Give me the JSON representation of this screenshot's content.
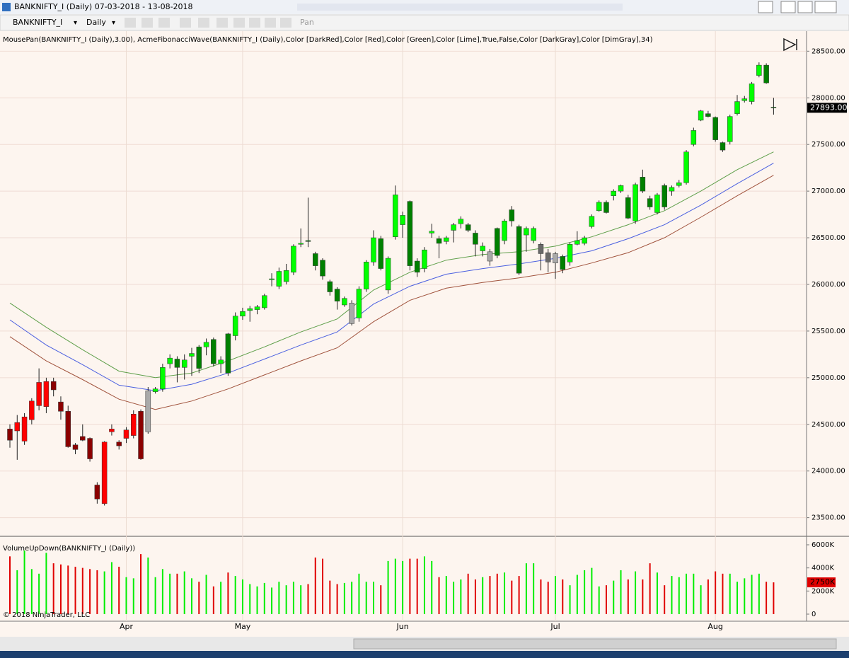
{
  "window": {
    "title": "BANKNIFTY_I (Daily)  07-03-2018 - 13-08-2018"
  },
  "toolbar": {
    "instrument": "BANKNIFTY_I",
    "period": "Daily",
    "mode": "Pan"
  },
  "copyright": "© 2018 NinjaTrader, LLC",
  "chart_data": [
    {
      "type": "candlestick",
      "label": "MousePan(BANKNIFTY_I (Daily),3.00), AcmeFibonacciWave(BANKNIFTY_I (Daily),Color [DarkRed],Color [Red],Color [Green],Color [Lime],True,False,Color [DarkGray],Color [DimGray],34)",
      "open": [
        24450,
        24430,
        24320,
        24550,
        24700,
        24690,
        24960,
        24740,
        24640,
        24280,
        24370,
        24350,
        23850,
        23650,
        24420,
        24310,
        24350,
        24380,
        24640,
        24420,
        24850,
        24880,
        25150,
        25200,
        25110,
        25230,
        25330,
        25330,
        25410,
        25150,
        25470,
        25450,
        25660,
        25720,
        25730,
        25750,
        26050,
        25980,
        26030,
        26130,
        26430,
        26470,
        26330,
        26260,
        26030,
        25950,
        25780,
        25580,
        25640,
        25950,
        26240,
        26490,
        25940,
        26510,
        26640,
        26890,
        26250,
        26170,
        26550,
        26490,
        26460,
        26580,
        26650,
        26640,
        26550,
        26360,
        26350,
        26600,
        26470,
        26800,
        26620,
        26530,
        26470,
        26430,
        26340,
        26230,
        26300,
        26240,
        26430,
        26440,
        26620,
        26790,
        26880,
        26950,
        27000,
        26930,
        26680,
        27150,
        26920,
        26770,
        27060,
        27000,
        27060,
        27090,
        27500,
        27760,
        27830,
        27790,
        27520,
        27530,
        27830,
        27970,
        27960,
        28240,
        28350,
        27900
      ],
      "high": [
        24500,
        24600,
        24620,
        24780,
        25100,
        25000,
        25000,
        24800,
        24700,
        24300,
        24500,
        24360,
        23880,
        24320,
        24500,
        24330,
        24470,
        24650,
        24660,
        24900,
        24900,
        25150,
        25250,
        25230,
        25250,
        25320,
        25350,
        25420,
        25430,
        25230,
        25480,
        25700,
        25750,
        25770,
        25780,
        25900,
        26120,
        26180,
        26220,
        26430,
        26600,
        26930,
        26350,
        26280,
        26050,
        25970,
        25870,
        25830,
        25980,
        26260,
        26580,
        26520,
        26300,
        27060,
        26780,
        26900,
        26280,
        26400,
        26650,
        26520,
        26520,
        26660,
        26730,
        26660,
        26580,
        26450,
        26380,
        26610,
        26700,
        26840,
        26640,
        26620,
        26620,
        26450,
        26380,
        26350,
        26320,
        26450,
        26570,
        26520,
        26750,
        26900,
        26900,
        27020,
        27070,
        26960,
        27090,
        27230,
        26950,
        26980,
        27080,
        27060,
        27120,
        27440,
        27680,
        27870,
        27860,
        27800,
        27530,
        27820,
        28030,
        28020,
        28170,
        28380,
        28370,
        28000
      ],
      "low": [
        24250,
        24120,
        24280,
        24500,
        24650,
        24620,
        24800,
        24550,
        24250,
        24180,
        24320,
        24100,
        23650,
        23630,
        24380,
        24230,
        24300,
        24350,
        24120,
        24400,
        24830,
        24850,
        25100,
        24950,
        24980,
        25020,
        25050,
        25240,
        25120,
        25050,
        25020,
        25400,
        25620,
        25600,
        25680,
        25730,
        25980,
        25950,
        26000,
        26100,
        26400,
        26400,
        26150,
        26050,
        25880,
        25730,
        25760,
        25560,
        25600,
        25920,
        26200,
        26150,
        25900,
        26480,
        26500,
        26150,
        26080,
        26130,
        26500,
        26280,
        26430,
        26450,
        26600,
        26560,
        26300,
        26300,
        26200,
        26280,
        26430,
        26620,
        26100,
        26350,
        26440,
        26150,
        26130,
        26060,
        26120,
        26200,
        26420,
        26420,
        26600,
        26780,
        26760,
        26900,
        26980,
        26700,
        26650,
        26980,
        26800,
        26750,
        26800,
        26950,
        27040,
        27070,
        27480,
        27750,
        27790,
        27530,
        27420,
        27500,
        27810,
        27950,
        27930,
        28220,
        28150,
        27820
      ],
      "close": [
        24330,
        24520,
        24580,
        24750,
        24950,
        24960,
        24870,
        24640,
        24260,
        24230,
        24330,
        24130,
        23700,
        24310,
        24450,
        24270,
        24440,
        24610,
        24130,
        24860,
        24880,
        25110,
        25210,
        25110,
        25190,
        25260,
        25100,
        25380,
        25150,
        25190,
        25050,
        25660,
        25710,
        25740,
        25760,
        25880,
        26060,
        26140,
        26150,
        26410,
        26440,
        26460,
        26200,
        26090,
        25920,
        25820,
        25850,
        25800,
        25950,
        26240,
        26500,
        26170,
        26280,
        26960,
        26740,
        26200,
        26130,
        26370,
        26570,
        26440,
        26500,
        26640,
        26700,
        26580,
        26430,
        26410,
        26250,
        26310,
        26680,
        26680,
        26120,
        26600,
        26600,
        26330,
        26240,
        26330,
        26160,
        26430,
        26470,
        26500,
        26730,
        26880,
        26770,
        27000,
        27060,
        26710,
        27070,
        27000,
        26830,
        26960,
        26830,
        27040,
        27090,
        27420,
        27650,
        27860,
        27800,
        27550,
        27440,
        27800,
        27960,
        27990,
        28150,
        28350,
        28160,
        27893
      ],
      "palette": [
        "#8b0000",
        "#ff0000",
        "#008000",
        "#00ff00",
        "#a9a9a9",
        "#696969"
      ],
      "candle_colors": [
        0,
        1,
        1,
        1,
        1,
        1,
        0,
        0,
        0,
        0,
        0,
        0,
        0,
        1,
        1,
        0,
        1,
        1,
        0,
        4,
        3,
        3,
        3,
        2,
        3,
        3,
        2,
        3,
        2,
        3,
        2,
        3,
        3,
        3,
        3,
        3,
        3,
        3,
        3,
        3,
        3,
        2,
        2,
        2,
        2,
        2,
        3,
        4,
        3,
        3,
        3,
        2,
        3,
        3,
        3,
        2,
        2,
        3,
        3,
        2,
        3,
        3,
        3,
        2,
        2,
        3,
        4,
        2,
        3,
        2,
        2,
        3,
        3,
        5,
        5,
        4,
        2,
        3,
        3,
        3,
        3,
        3,
        2,
        3,
        3,
        2,
        3,
        2,
        2,
        3,
        2,
        3,
        3,
        3,
        3,
        3,
        2,
        2,
        2,
        3,
        3,
        3,
        3,
        3,
        2,
        2
      ],
      "series": [
        {
          "color": "#5f9f4a",
          "x": [
            0,
            5,
            10,
            15,
            20,
            25,
            30,
            35,
            40,
            45,
            50,
            55,
            60,
            65,
            70,
            75,
            80,
            85,
            90,
            95,
            100,
            105
          ],
          "values": [
            25800,
            25540,
            25300,
            25070,
            25000,
            25050,
            25180,
            25330,
            25490,
            25630,
            25940,
            26130,
            26260,
            26320,
            26350,
            26410,
            26510,
            26640,
            26790,
            27000,
            27230,
            27420
          ]
        },
        {
          "color": "#4a5fe0",
          "x": [
            0,
            5,
            10,
            15,
            20,
            25,
            30,
            35,
            40,
            45,
            50,
            55,
            60,
            65,
            70,
            75,
            80,
            85,
            90,
            95,
            100,
            105
          ],
          "values": [
            25620,
            25350,
            25140,
            24920,
            24860,
            24930,
            25050,
            25200,
            25350,
            25490,
            25790,
            25980,
            26110,
            26170,
            26220,
            26280,
            26360,
            26490,
            26640,
            26850,
            27080,
            27300
          ]
        },
        {
          "color": "#a0523c",
          "x": [
            0,
            5,
            10,
            15,
            20,
            25,
            30,
            35,
            40,
            45,
            50,
            55,
            60,
            65,
            70,
            75,
            80,
            85,
            90,
            95,
            100,
            105
          ],
          "values": [
            25440,
            25180,
            24980,
            24770,
            24660,
            24750,
            24880,
            25030,
            25180,
            25320,
            25600,
            25830,
            25960,
            26020,
            26070,
            26130,
            26230,
            26340,
            26500,
            26720,
            26950,
            27170
          ]
        }
      ],
      "ylim": [
        23300,
        28730
      ],
      "yticks": [
        {
          "value": 23500,
          "label": "23500.00"
        },
        {
          "value": 24000,
          "label": "24000.00"
        },
        {
          "value": 24500,
          "label": "24500.00"
        },
        {
          "value": 25000,
          "label": "25000.00"
        },
        {
          "value": 25500,
          "label": "25500.00"
        },
        {
          "value": 26000,
          "label": "26000.00"
        },
        {
          "value": 26500,
          "label": "26500.00"
        },
        {
          "value": 27000,
          "label": "27000.00"
        },
        {
          "value": 27500,
          "label": "27500.00"
        },
        {
          "value": 28000,
          "label": "28000.00"
        },
        {
          "value": 28500,
          "label": "28500.00"
        }
      ],
      "last_label": "27893.00",
      "grid": true
    },
    {
      "type": "bar",
      "label": "VolumeUpDown(BANKNIFTY_I (Daily))",
      "categories": [
        null,
        null,
        null,
        null,
        null,
        null,
        null,
        null,
        null,
        null,
        null,
        null,
        null,
        null,
        null,
        null,
        "Apr",
        null,
        null,
        null,
        null,
        null,
        null,
        null,
        null,
        null,
        null,
        null,
        null,
        null,
        null,
        null,
        "May",
        null,
        null,
        null,
        null,
        null,
        null,
        null,
        null,
        null,
        null,
        null,
        null,
        null,
        null,
        null,
        null,
        null,
        null,
        null,
        null,
        null,
        "Jun",
        null,
        null,
        null,
        null,
        null,
        null,
        null,
        null,
        null,
        null,
        null,
        null,
        null,
        null,
        null,
        null,
        null,
        null,
        null,
        null,
        "Jul",
        null,
        null,
        null,
        null,
        null,
        null,
        null,
        null,
        null,
        null,
        null,
        null,
        null,
        null,
        null,
        null,
        null,
        null,
        null,
        null,
        null,
        "Aug",
        null,
        null,
        null,
        null,
        null,
        null,
        null,
        null
      ],
      "values": [
        5000,
        3800,
        5500,
        3900,
        3500,
        5300,
        4400,
        4300,
        4200,
        4100,
        4000,
        3900,
        3800,
        3700,
        4500,
        4100,
        3200,
        3100,
        5200,
        4900,
        3200,
        3900,
        3500,
        3500,
        3700,
        3100,
        2800,
        3400,
        2400,
        2800,
        3600,
        3300,
        3000,
        2600,
        2400,
        2700,
        2300,
        2800,
        2500,
        2800,
        2500,
        2600,
        4900,
        4800,
        2900,
        2600,
        2700,
        2800,
        3500,
        2800,
        2800,
        2500,
        4600,
        4800,
        4600,
        4800,
        4800,
        5000,
        4600,
        3200,
        3300,
        2800,
        3000,
        3500,
        3000,
        3200,
        3300,
        3500,
        3600,
        2900,
        3300,
        4400,
        4400,
        3000,
        2800,
        3300,
        3000,
        2500,
        3400,
        3800,
        4000,
        2400,
        2500,
        2900,
        3800,
        3000,
        3700,
        3000,
        4400,
        3600,
        2500,
        3300,
        3200,
        3500,
        3500,
        2500,
        3000,
        3700,
        3500,
        3500,
        2800,
        3100,
        3400,
        3500,
        2800,
        2750
      ],
      "colors": {
        "up": "#00ee00",
        "down": "#e00000"
      },
      "ylim": [
        0,
        6000
      ],
      "yticks": [
        0,
        {
          "value": 2000,
          "label": "2000K"
        },
        {
          "value": 4000,
          "label": "4000K"
        },
        {
          "value": 6000,
          "label": "6000K"
        }
      ],
      "last_label": "2750K"
    }
  ]
}
